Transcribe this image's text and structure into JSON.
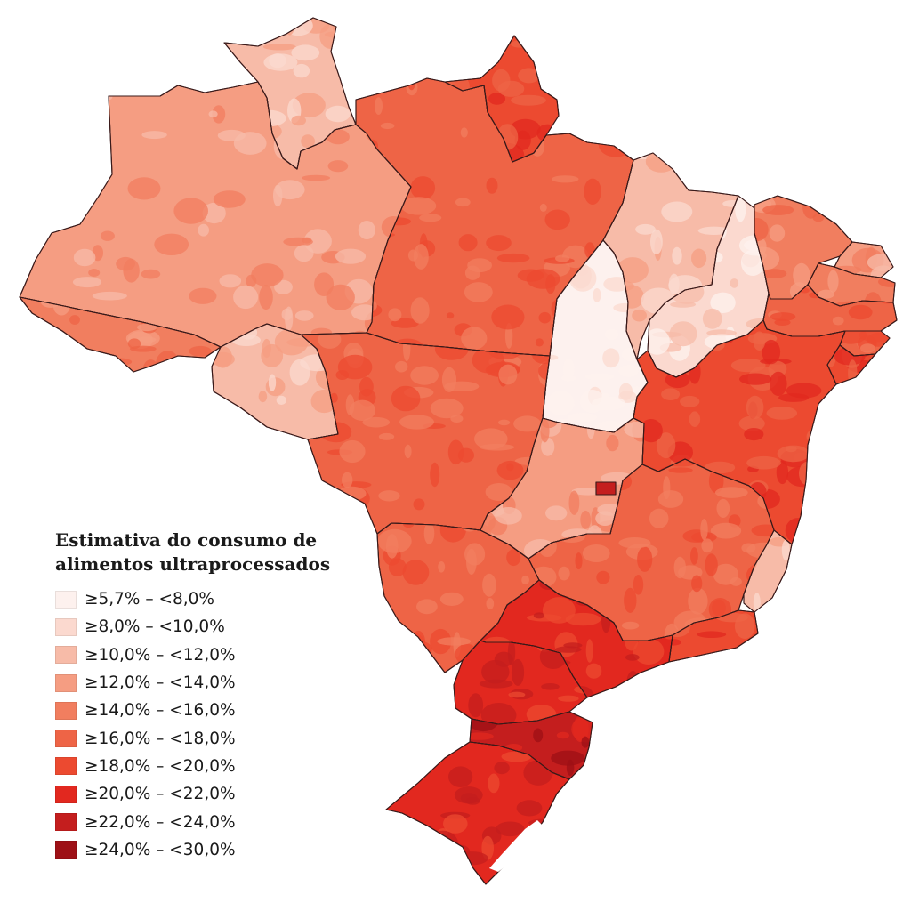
{
  "legend": {
    "title_line1": "Estimativa do consumo de",
    "title_line2": "alimentos ultraprocessados",
    "classes": [
      {
        "label": "≥5,7% – <8,0%",
        "color": "#fdf1ee"
      },
      {
        "label": "≥8,0% – <10,0%",
        "color": "#fbd9cf"
      },
      {
        "label": "≥10,0% – <12,0%",
        "color": "#f7bba8"
      },
      {
        "label": "≥12,0% – <14,0%",
        "color": "#f59d82"
      },
      {
        "label": "≥14,0% – <16,0%",
        "color": "#f17e5f"
      },
      {
        "label": "≥16,0% – <18,0%",
        "color": "#ee6446"
      },
      {
        "label": "≥18,0% – <20,0%",
        "color": "#ec4a30"
      },
      {
        "label": "≥20,0% – <22,0%",
        "color": "#e2281f"
      },
      {
        "label": "≥22,0% – <24,0%",
        "color": "#c41e1e"
      },
      {
        "label": "≥24,0% – <30,0%",
        "color": "#9e1016"
      }
    ]
  },
  "states": [
    {
      "name": "RR",
      "cls": 2
    },
    {
      "name": "AM",
      "cls": 3
    },
    {
      "name": "AC",
      "cls": 4
    },
    {
      "name": "RO",
      "cls": 2
    },
    {
      "name": "PA",
      "cls": 5
    },
    {
      "name": "AP",
      "cls": 6
    },
    {
      "name": "MT",
      "cls": 5
    },
    {
      "name": "TO",
      "cls": 0
    },
    {
      "name": "MA",
      "cls": 2
    },
    {
      "name": "PI",
      "cls": 1
    },
    {
      "name": "CE",
      "cls": 4
    },
    {
      "name": "RN",
      "cls": 3
    },
    {
      "name": "PB",
      "cls": 4
    },
    {
      "name": "PE",
      "cls": 5
    },
    {
      "name": "AL",
      "cls": 5
    },
    {
      "name": "SE",
      "cls": 6
    },
    {
      "name": "BA",
      "cls": 6
    },
    {
      "name": "GO",
      "cls": 3
    },
    {
      "name": "DF",
      "cls": 8
    },
    {
      "name": "MG",
      "cls": 5
    },
    {
      "name": "ES",
      "cls": 2
    },
    {
      "name": "RJ",
      "cls": 6
    },
    {
      "name": "MS",
      "cls": 5
    },
    {
      "name": "SP",
      "cls": 7
    },
    {
      "name": "PR",
      "cls": 7
    },
    {
      "name": "SC",
      "cls": 8
    },
    {
      "name": "RS",
      "cls": 7
    }
  ]
}
